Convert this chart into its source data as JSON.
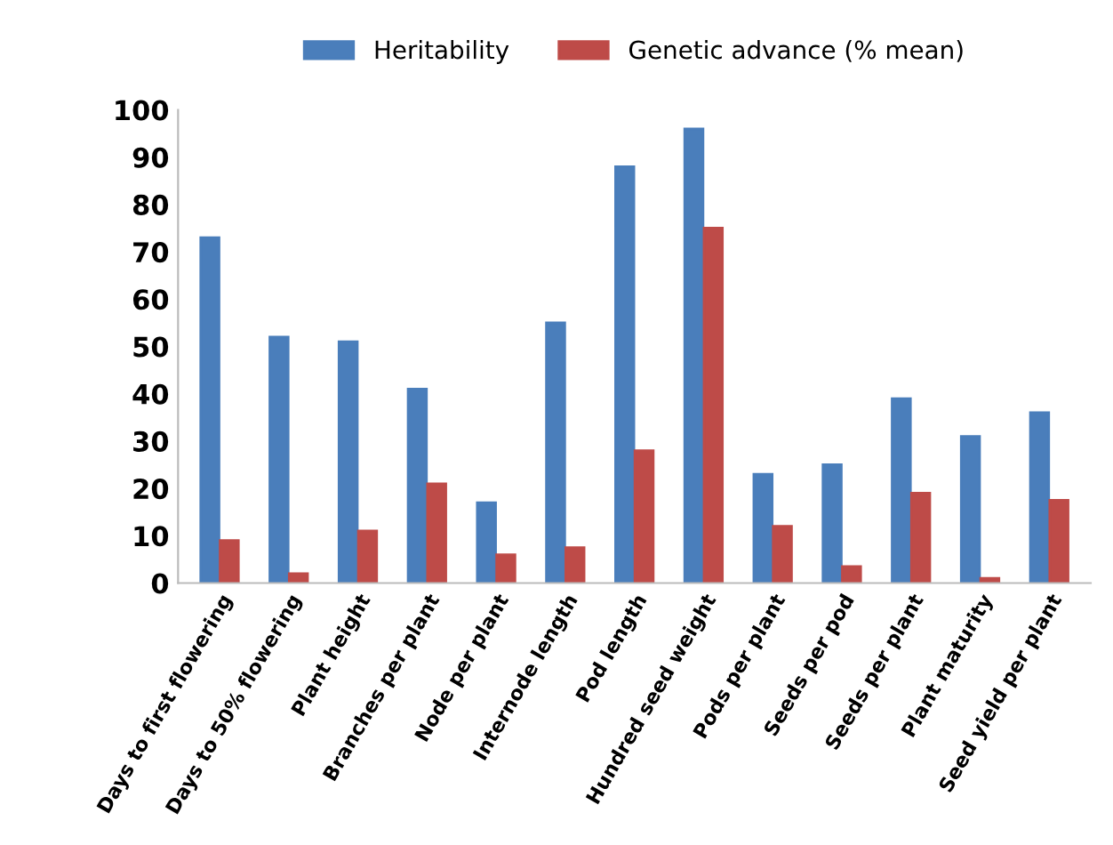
{
  "chart_data": {
    "type": "bar",
    "categories": [
      "Days to first flowering",
      "Days to 50% flowering",
      "Plant height",
      "Branches per plant",
      "Node per plant",
      "Internode length",
      "Pod length",
      "Hundred seed weight",
      "Pods per plant",
      "Seeds per pod",
      "Seeds per plant",
      "Plant maturity",
      "Seed yield per plant"
    ],
    "series": [
      {
        "name": "Heritability",
        "color": "#4a7ebb",
        "values": [
          73,
          52,
          51,
          41,
          17,
          55,
          88,
          96,
          23,
          25,
          39,
          31,
          36
        ]
      },
      {
        "name": "Genetic advance (% mean)",
        "color": "#be4b48",
        "values": [
          9,
          2,
          11,
          21,
          6,
          7.5,
          28,
          75,
          12,
          3.5,
          19,
          1,
          17.5
        ]
      }
    ],
    "ylim": [
      0,
      100
    ],
    "yticks": [
      0,
      10,
      20,
      30,
      40,
      50,
      60,
      70,
      80,
      90,
      100
    ],
    "grid": false,
    "legend": "top"
  }
}
